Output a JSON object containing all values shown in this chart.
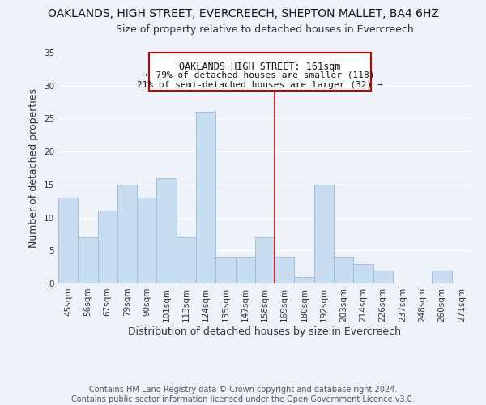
{
  "title": "OAKLANDS, HIGH STREET, EVERCREECH, SHEPTON MALLET, BA4 6HZ",
  "subtitle": "Size of property relative to detached houses in Evercreech",
  "xlabel": "Distribution of detached houses by size in Evercreech",
  "ylabel": "Number of detached properties",
  "bin_labels": [
    "45sqm",
    "56sqm",
    "67sqm",
    "79sqm",
    "90sqm",
    "101sqm",
    "113sqm",
    "124sqm",
    "135sqm",
    "147sqm",
    "158sqm",
    "169sqm",
    "180sqm",
    "192sqm",
    "203sqm",
    "214sqm",
    "226sqm",
    "237sqm",
    "248sqm",
    "260sqm",
    "271sqm"
  ],
  "bar_heights": [
    13,
    7,
    11,
    15,
    13,
    16,
    7,
    26,
    4,
    4,
    7,
    4,
    1,
    15,
    4,
    3,
    2,
    0,
    0,
    2,
    0
  ],
  "bar_color": "#c8ddf0",
  "bar_edge_color": "#a0bcd8",
  "ylim": [
    0,
    35
  ],
  "yticks": [
    0,
    5,
    10,
    15,
    20,
    25,
    30,
    35
  ],
  "property_label": "OAKLANDS HIGH STREET: 161sqm",
  "annotation_line1": "← 79% of detached houses are smaller (118)",
  "annotation_line2": "21% of semi-detached houses are larger (32) →",
  "footer_line1": "Contains HM Land Registry data © Crown copyright and database right 2024.",
  "footer_line2": "Contains public sector information licensed under the Open Government Licence v3.0.",
  "background_color": "#eef2f9",
  "grid_color": "#ffffff",
  "title_fontsize": 10,
  "subtitle_fontsize": 9,
  "label_fontsize": 9,
  "tick_fontsize": 7.5,
  "footer_fontsize": 7
}
